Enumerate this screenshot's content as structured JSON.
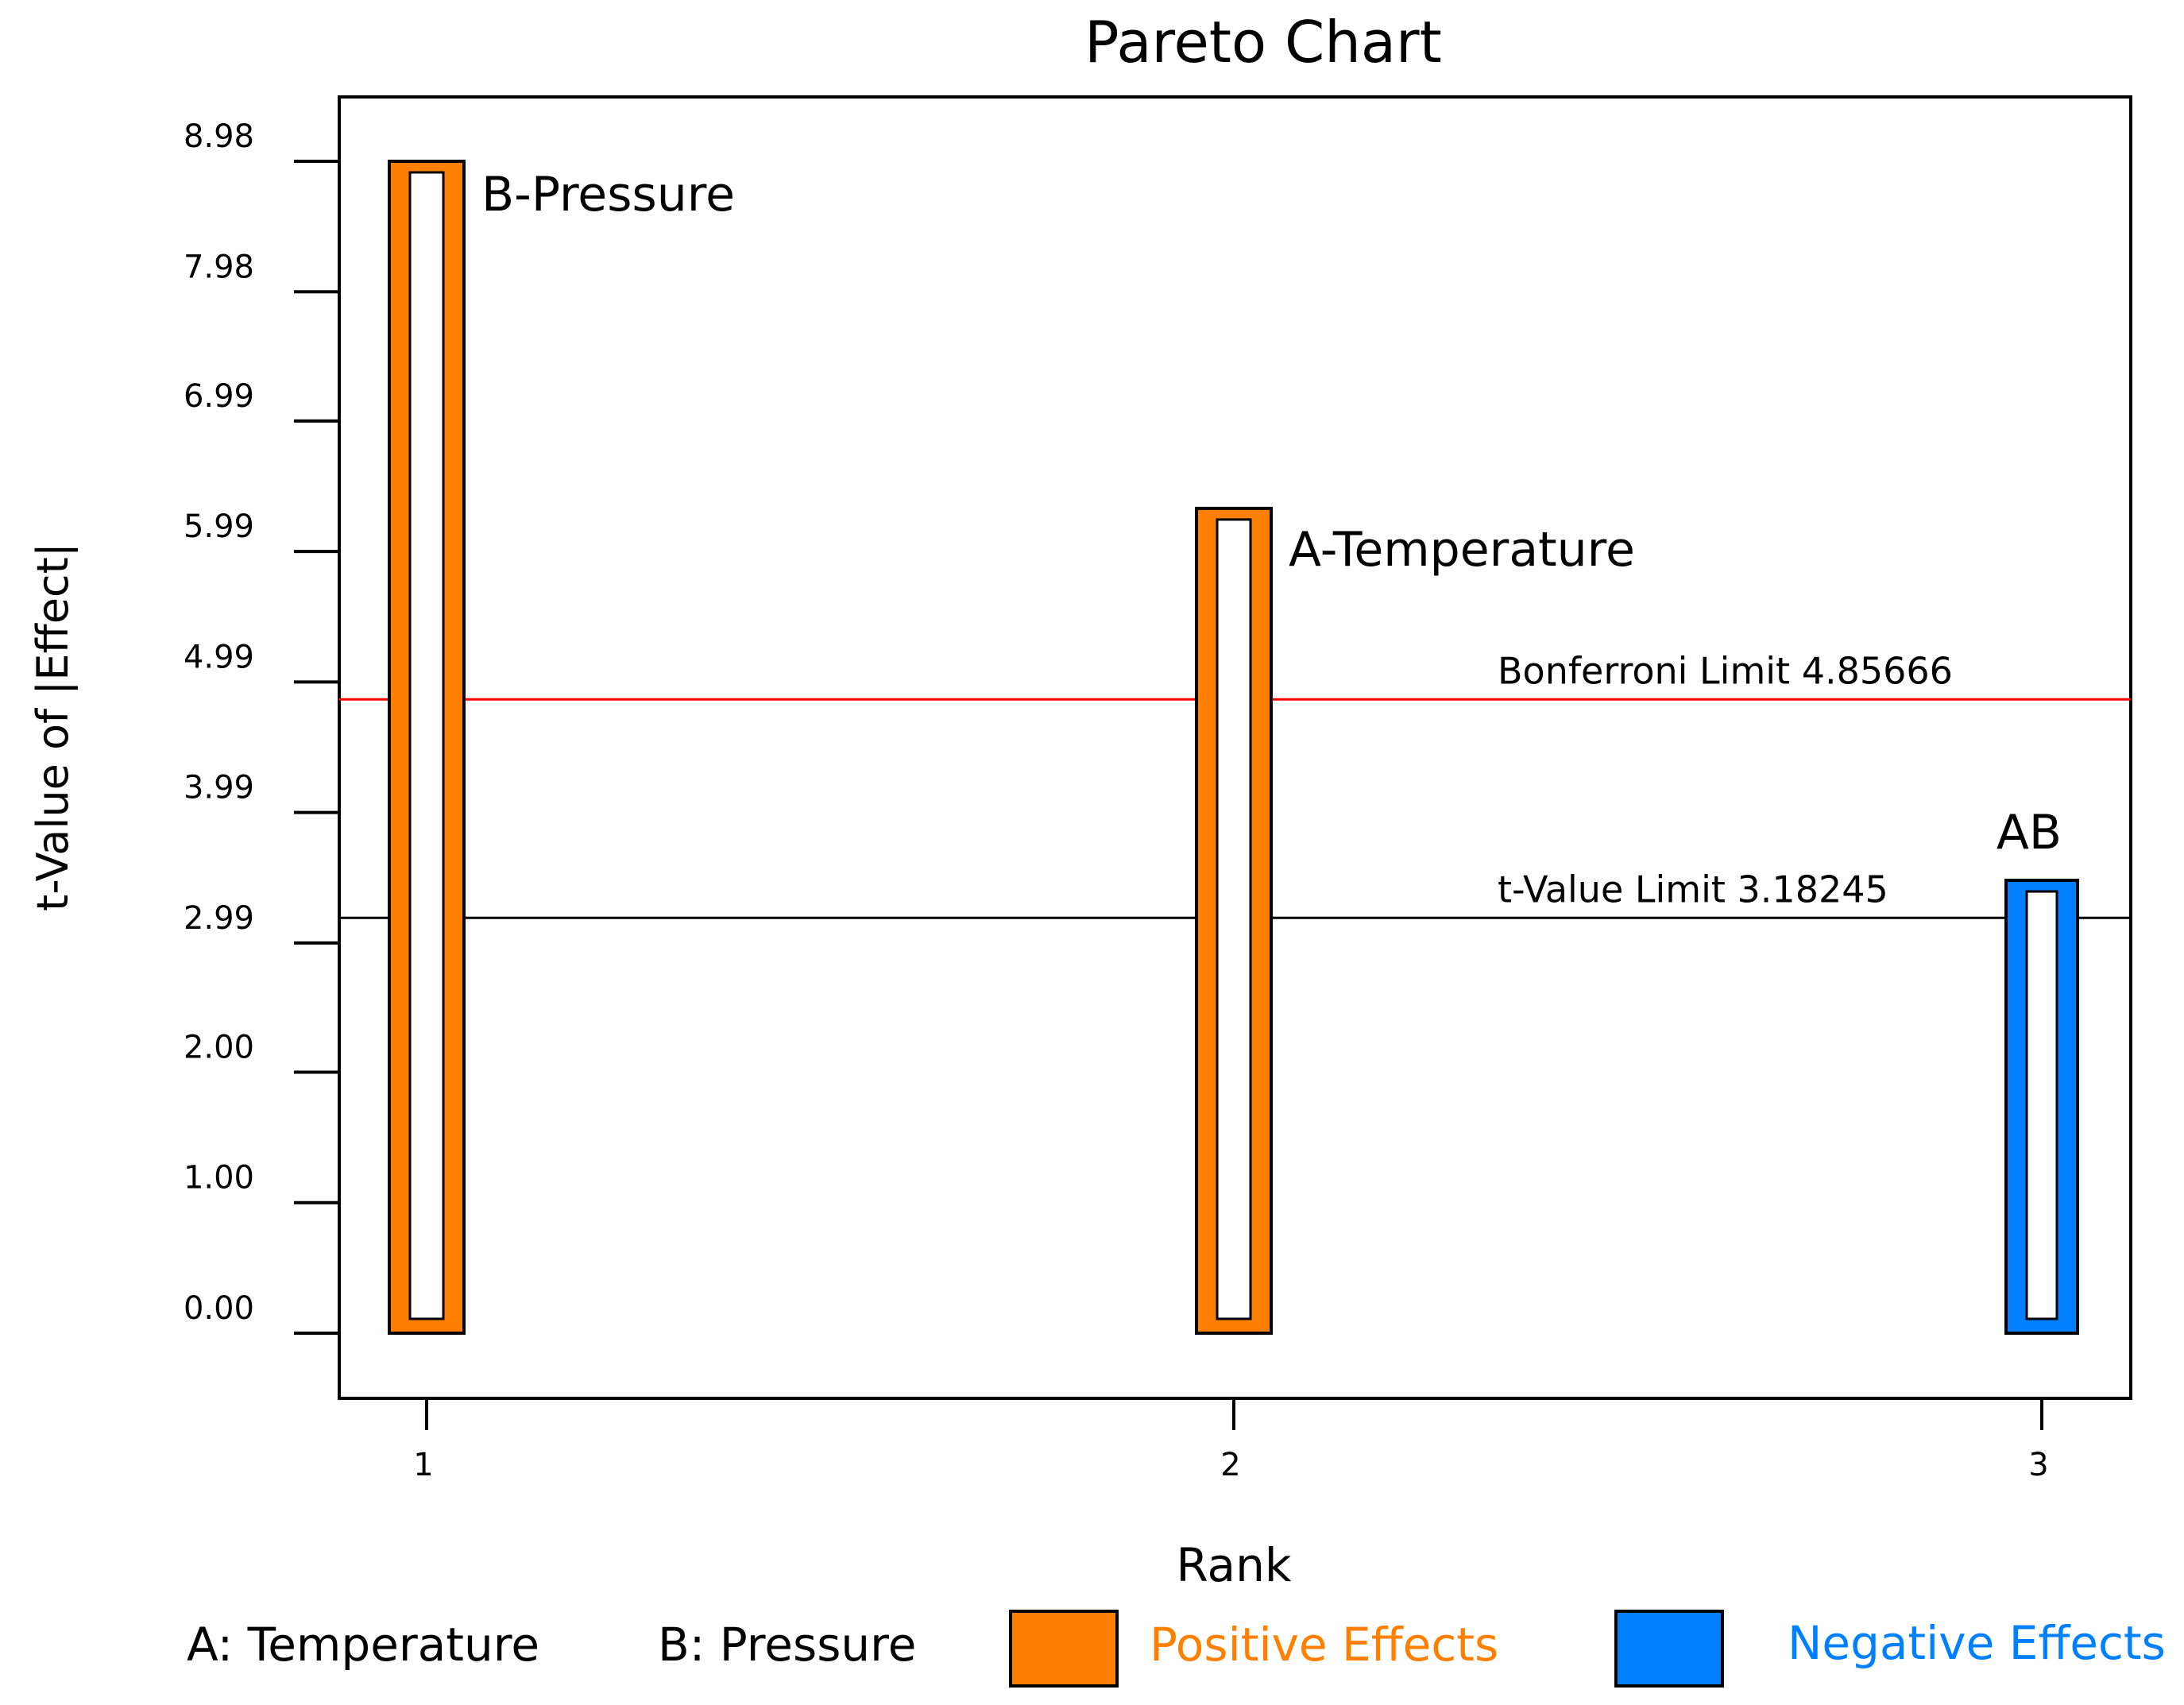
{
  "chart_data": {
    "type": "bar",
    "title": "Pareto Chart",
    "xlabel": "Rank",
    "ylabel": "t-Value of |Effect|",
    "x_ticks": [
      "1",
      "2",
      "3"
    ],
    "y_ticks": [
      "0.00",
      "1.00",
      "2.00",
      "2.99",
      "3.99",
      "4.99",
      "5.99",
      "6.99",
      "7.98",
      "8.98"
    ],
    "ylim": [
      -0.5,
      9.5
    ],
    "bars": [
      {
        "rank": 1,
        "label": "B-Pressure",
        "value": 8.98,
        "effect": "positive"
      },
      {
        "rank": 2,
        "label": "A-Temperature",
        "value": 6.32,
        "effect": "positive"
      },
      {
        "rank": 3,
        "label": "AB",
        "value": 3.47,
        "effect": "negative"
      }
    ],
    "limits": [
      {
        "name": "bonferroni",
        "label": "Bonferroni Limit 4.85666",
        "value": 4.85666,
        "color": "#ff0000"
      },
      {
        "name": "t-value",
        "label": "t-Value Limit 3.18245",
        "value": 3.18245,
        "color": "#000000"
      }
    ],
    "grid": false,
    "legend_position": "bottom"
  },
  "legend": {
    "factor_a": "A: Temperature",
    "factor_b": "B: Pressure",
    "positive_label": "Positive Effects",
    "negative_label": "Negative Effects"
  },
  "colors": {
    "positive": "#ff7f00",
    "negative": "#0080ff",
    "axis": "#000000"
  }
}
